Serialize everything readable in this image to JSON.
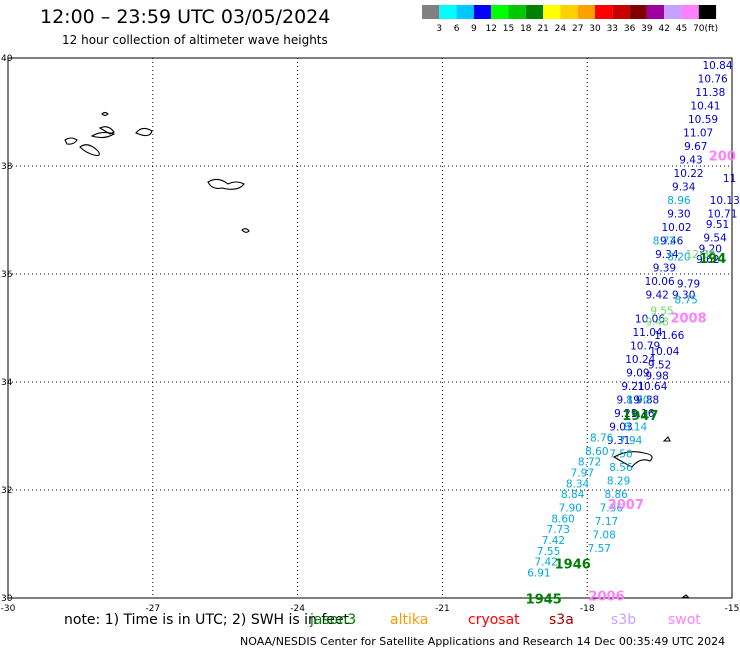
{
  "header": {
    "title": "12:00 – 23:59 UTC 03/05/2024",
    "subtitle": "12 hour collection of altimeter wave heights"
  },
  "legend": {
    "colors": [
      "#808080",
      "#00ffff",
      "#00c8ff",
      "#0000ff",
      "#00ff00",
      "#00c800",
      "#008000",
      "#ffff00",
      "#ffd000",
      "#ffa000",
      "#ff0000",
      "#c80000",
      "#800000",
      "#a000a0",
      "#c8a0ff",
      "#ff80ff",
      "#000000"
    ],
    "labels": [
      "3",
      "6",
      "9",
      "12",
      "15",
      "18",
      "21",
      "24",
      "27",
      "30",
      "33",
      "36",
      "39",
      "42",
      "45",
      "70"
    ],
    "unit": "(ft)"
  },
  "map": {
    "lon_ticks": [
      "-30",
      "-27",
      "-24",
      "-21",
      "-18",
      "-15"
    ],
    "lat_ticks": [
      "40",
      "38",
      "36",
      "34",
      "32",
      "30"
    ],
    "lon_range": [
      -30,
      -15
    ],
    "lat_range": [
      30,
      40
    ]
  },
  "tracks": [
    {
      "color": "#0000cc",
      "label": null,
      "points": [
        {
          "lon": -15.3,
          "lat": 39.8,
          "v": "10.84"
        },
        {
          "lon": -15.4,
          "lat": 39.55,
          "v": "10.76"
        },
        {
          "lon": -15.45,
          "lat": 39.3,
          "v": "11.38"
        },
        {
          "lon": -15.55,
          "lat": 39.05,
          "v": "10.41"
        },
        {
          "lon": -15.6,
          "lat": 38.8,
          "v": "10.59"
        },
        {
          "lon": -15.7,
          "lat": 38.55,
          "v": "11.07"
        },
        {
          "lon": -15.75,
          "lat": 38.3,
          "v": "9.67"
        },
        {
          "lon": -15.85,
          "lat": 38.05,
          "v": "9.43"
        },
        {
          "lon": -15.9,
          "lat": 37.8,
          "v": "10.22"
        },
        {
          "lon": -16.0,
          "lat": 37.55,
          "v": "9.34"
        },
        {
          "lon": -16.1,
          "lat": 37.05,
          "v": "9.30"
        },
        {
          "lon": -16.15,
          "lat": 36.8,
          "v": "10.02"
        },
        {
          "lon": -16.25,
          "lat": 36.55,
          "v": "9.46"
        },
        {
          "lon": -16.35,
          "lat": 36.3,
          "v": "9.34"
        },
        {
          "lon": -16.4,
          "lat": 36.05,
          "v": "9.39"
        },
        {
          "lon": -16.5,
          "lat": 35.8,
          "v": "10.06"
        },
        {
          "lon": -16.55,
          "lat": 35.55,
          "v": "9.42"
        },
        {
          "lon": -16.7,
          "lat": 35.1,
          "v": "10.06"
        },
        {
          "lon": -16.75,
          "lat": 34.85,
          "v": "11.04"
        },
        {
          "lon": -16.8,
          "lat": 34.6,
          "v": "10.79"
        },
        {
          "lon": -16.9,
          "lat": 34.35,
          "v": "10.24"
        },
        {
          "lon": -16.95,
          "lat": 34.1,
          "v": "9.09"
        },
        {
          "lon": -17.05,
          "lat": 33.85,
          "v": "9.21"
        },
        {
          "lon": -17.15,
          "lat": 33.6,
          "v": "9.19"
        },
        {
          "lon": -17.2,
          "lat": 33.35,
          "v": "9.21"
        },
        {
          "lon": -17.3,
          "lat": 33.1,
          "v": "9.03"
        },
        {
          "lon": -17.35,
          "lat": 32.85,
          "v": "9.31"
        }
      ]
    },
    {
      "color": "#0000cc",
      "label": null,
      "points": [
        {
          "lon": -15.05,
          "lat": 37.7,
          "v": "11"
        },
        {
          "lon": -15.15,
          "lat": 37.3,
          "v": "10.13"
        },
        {
          "lon": -15.2,
          "lat": 37.05,
          "v": "10.71"
        },
        {
          "lon": -15.3,
          "lat": 36.85,
          "v": "9.51"
        },
        {
          "lon": -15.35,
          "lat": 36.6,
          "v": "9.54"
        },
        {
          "lon": -15.45,
          "lat": 36.4,
          "v": "9.20"
        },
        {
          "lon": -15.5,
          "lat": 36.2,
          "v": "9.62"
        },
        {
          "lon": -15.9,
          "lat": 35.75,
          "v": "9.79"
        },
        {
          "lon": -16.0,
          "lat": 35.55,
          "v": "9.30"
        },
        {
          "lon": -16.3,
          "lat": 34.8,
          "v": "11.66"
        },
        {
          "lon": -16.4,
          "lat": 34.5,
          "v": "10.04"
        },
        {
          "lon": -16.5,
          "lat": 34.25,
          "v": "9.52"
        },
        {
          "lon": -16.55,
          "lat": 34.05,
          "v": "9.98"
        },
        {
          "lon": -16.65,
          "lat": 33.85,
          "v": "10.64"
        },
        {
          "lon": -16.75,
          "lat": 33.6,
          "v": "9.88"
        },
        {
          "lon": -16.85,
          "lat": 33.35,
          "v": "9.16"
        }
      ]
    },
    {
      "color": "#00aadd",
      "label": null,
      "points": [
        {
          "lon": -16.1,
          "lat": 37.3,
          "v": "8.96"
        },
        {
          "lon": -16.4,
          "lat": 36.55,
          "v": "8.72"
        },
        {
          "lon": -16.1,
          "lat": 36.25,
          "v": "8.20"
        },
        {
          "lon": -15.95,
          "lat": 35.45,
          "v": "8.75"
        },
        {
          "lon": -16.95,
          "lat": 33.6,
          "v": "8.70"
        },
        {
          "lon": -17.0,
          "lat": 33.1,
          "v": "8.14"
        },
        {
          "lon": -17.1,
          "lat": 32.85,
          "v": "7.94"
        },
        {
          "lon": -17.3,
          "lat": 32.6,
          "v": "7.50"
        },
        {
          "lon": -17.3,
          "lat": 32.35,
          "v": "8.56"
        },
        {
          "lon": -17.35,
          "lat": 32.1,
          "v": "8.29"
        },
        {
          "lon": -17.4,
          "lat": 31.85,
          "v": "8.86"
        },
        {
          "lon": -17.5,
          "lat": 31.6,
          "v": "7.36"
        },
        {
          "lon": -17.6,
          "lat": 31.35,
          "v": "7.17"
        },
        {
          "lon": -17.65,
          "lat": 31.1,
          "v": "7.08"
        },
        {
          "lon": -17.75,
          "lat": 30.85,
          "v": "7.57"
        },
        {
          "lon": -17.7,
          "lat": 32.9,
          "v": "8.76"
        },
        {
          "lon": -17.8,
          "lat": 32.65,
          "v": "8.60"
        },
        {
          "lon": -17.95,
          "lat": 32.45,
          "v": "8.72"
        },
        {
          "lon": -18.1,
          "lat": 32.25,
          "v": "7.97"
        },
        {
          "lon": -18.2,
          "lat": 32.05,
          "v": "8.34"
        },
        {
          "lon": -18.3,
          "lat": 31.85,
          "v": "8.84"
        },
        {
          "lon": -18.35,
          "lat": 31.6,
          "v": "7.90"
        },
        {
          "lon": -18.5,
          "lat": 31.4,
          "v": "8.60"
        },
        {
          "lon": -18.6,
          "lat": 31.2,
          "v": "7.73"
        },
        {
          "lon": -18.7,
          "lat": 31.0,
          "v": "7.42"
        },
        {
          "lon": -18.8,
          "lat": 30.8,
          "v": "7.55"
        },
        {
          "lon": -18.85,
          "lat": 30.6,
          "v": "7.42"
        },
        {
          "lon": -19.0,
          "lat": 30.4,
          "v": "6.91"
        }
      ]
    },
    {
      "color": "#66dd66",
      "label": null,
      "points": [
        {
          "lon": -15.65,
          "lat": 36.3,
          "v": "12.89"
        },
        {
          "lon": -16.45,
          "lat": 35.25,
          "v": "9.55"
        },
        {
          "lon": -16.55,
          "lat": 35.05,
          "v": "9.48"
        }
      ]
    }
  ],
  "pass_labels": [
    {
      "lon": -15.2,
      "lat": 38.1,
      "text": "200",
      "color": "#ff80ff"
    },
    {
      "lon": -15.4,
      "lat": 36.2,
      "text": "194",
      "color": "#008000"
    },
    {
      "lon": -15.9,
      "lat": 35.1,
      "text": "2008",
      "color": "#ff80ff"
    },
    {
      "lon": -16.9,
      "lat": 33.3,
      "text": "1947",
      "color": "#008000"
    },
    {
      "lon": -17.2,
      "lat": 31.65,
      "text": "2007",
      "color": "#ff80ff"
    },
    {
      "lon": -18.3,
      "lat": 30.55,
      "text": "1946",
      "color": "#008000"
    },
    {
      "lon": -17.6,
      "lat": 29.95,
      "text": "2006",
      "color": "#ff80ff"
    },
    {
      "lon": -18.9,
      "lat": 29.9,
      "text": "1945",
      "color": "#008000"
    }
  ],
  "footer": {
    "note": "note:  1) Time is in UTC; 2) SWH is in feet",
    "satellites": [
      {
        "name": "jason3",
        "color": "#008000",
        "left": 310
      },
      {
        "name": "altika",
        "color": "#ff9900",
        "left": 390
      },
      {
        "name": "cryosat",
        "color": "#ff0000",
        "left": 468
      },
      {
        "name": "s3a",
        "color": "#990000",
        "left": 549
      },
      {
        "name": "s3b",
        "color": "#c8a0ff",
        "left": 611
      },
      {
        "name": "swot",
        "color": "#ff80ff",
        "left": 668
      }
    ],
    "credit": "NOAA/NESDIS Center for Satellite Applications and Research     14 Dec 00:35:49 UTC 2024"
  }
}
